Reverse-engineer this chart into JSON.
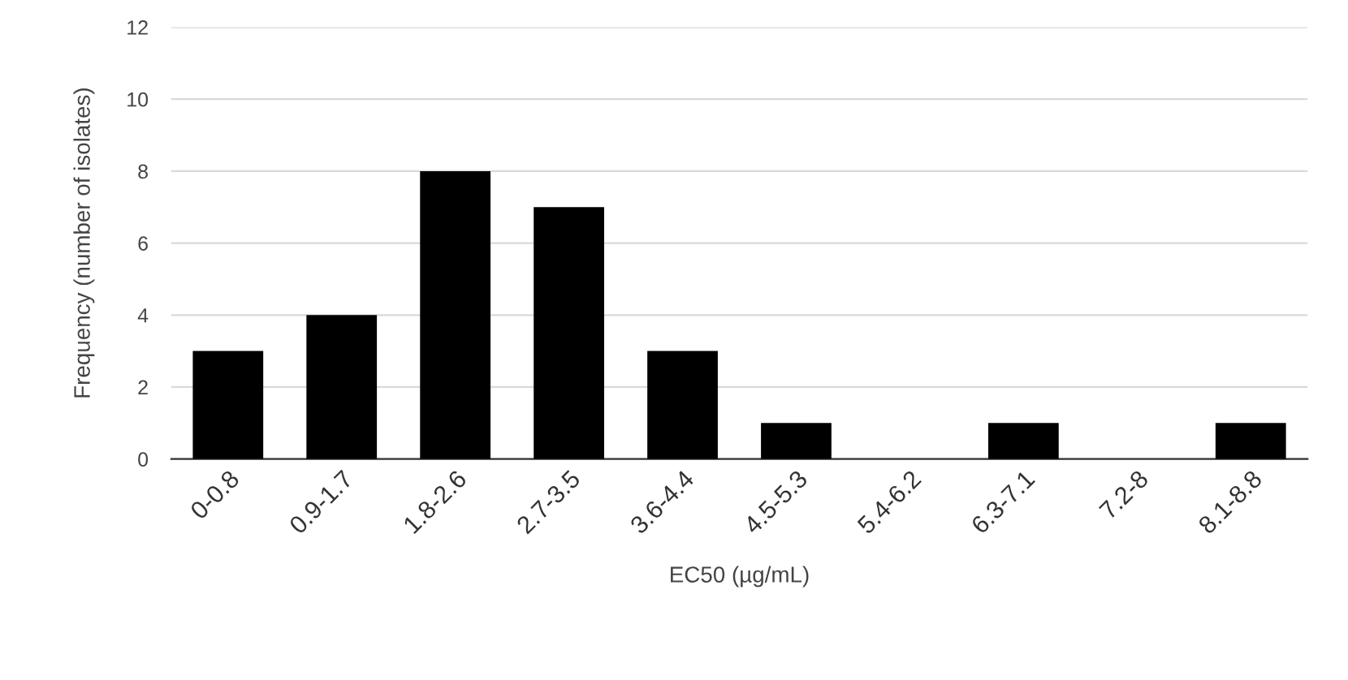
{
  "chart_data": {
    "type": "bar",
    "categories": [
      "0-0.8",
      "0.9-1.7",
      "1.8-2.6",
      "2.7-3.5",
      "3.6-4.4",
      "4.5-5.3",
      "5.4-6.2",
      "6.3-7.1",
      "7.2-8",
      "8.1-8.8"
    ],
    "values": [
      3,
      4,
      8,
      7,
      3,
      1,
      0,
      1,
      0,
      1
    ],
    "color": "#000000",
    "xlabel": "EC50 (µg/mL)",
    "ylabel": "Frequency (number of isolates)",
    "ylim": [
      0,
      12
    ],
    "yticks": [
      0,
      2,
      4,
      6,
      8,
      10,
      12
    ],
    "grid": "y"
  }
}
